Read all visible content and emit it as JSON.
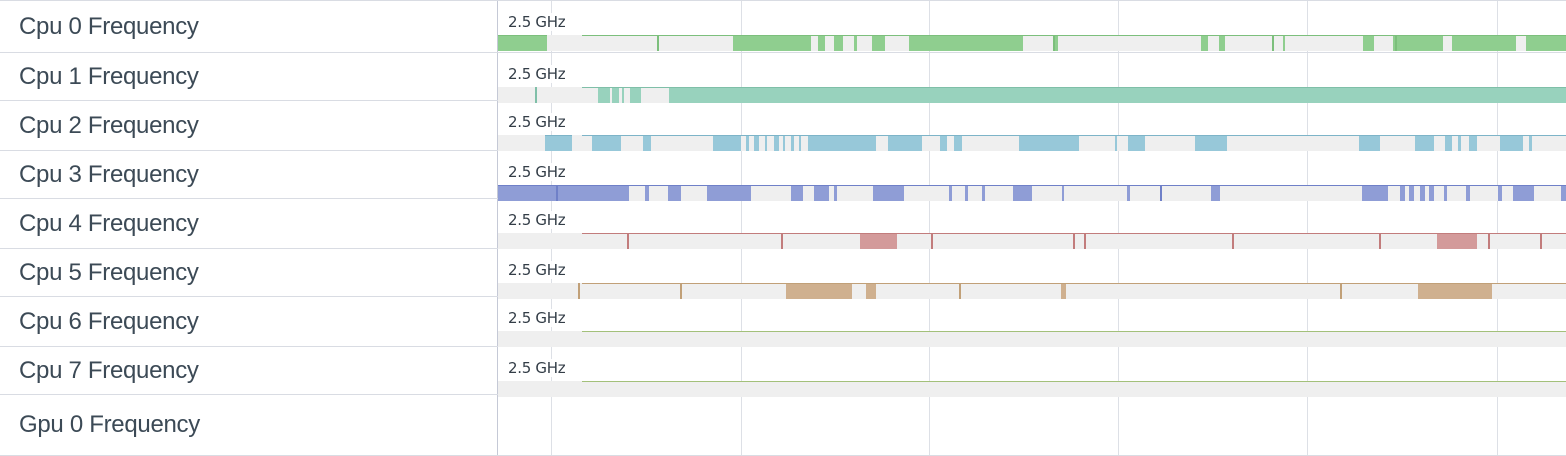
{
  "scale_label": "2.5 GHz",
  "tracks": [
    {
      "label": "Cpu 0 Frequency",
      "color": "#8fce8f",
      "line_color": "#7cbf7c",
      "segments": [
        [
          0.0,
          0.046
        ],
        [
          0.22,
          0.293
        ],
        [
          0.3,
          0.306
        ],
        [
          0.315,
          0.323
        ],
        [
          0.333,
          0.336
        ],
        [
          0.35,
          0.362
        ],
        [
          0.385,
          0.492
        ],
        [
          0.522,
          0.524
        ],
        [
          0.675,
          0.677
        ],
        [
          0.658,
          0.665
        ],
        [
          0.675,
          0.681
        ],
        [
          0.735,
          0.737
        ],
        [
          0.816,
          0.82
        ],
        [
          0.81,
          0.819
        ],
        [
          0.838,
          0.885
        ],
        [
          0.893,
          0.953
        ],
        [
          0.963,
          1.0
        ]
      ],
      "ticks": [
        0.149,
        0.52,
        0.725,
        0.84
      ]
    },
    {
      "label": "Cpu 1 Frequency",
      "color": "#98d2bd",
      "line_color": "#7fbfa8",
      "segments": [
        [
          0.094,
          0.105
        ],
        [
          0.107,
          0.113
        ],
        [
          0.116,
          0.118
        ],
        [
          0.124,
          0.134
        ],
        [
          0.16,
          1.0
        ]
      ],
      "ticks": [
        0.035
      ]
    },
    {
      "label": "Cpu 2 Frequency",
      "color": "#97c8d9",
      "line_color": "#7db4c8",
      "segments": [
        [
          0.044,
          0.069
        ],
        [
          0.088,
          0.115
        ],
        [
          0.136,
          0.143
        ],
        [
          0.201,
          0.228
        ],
        [
          0.232,
          0.235
        ],
        [
          0.24,
          0.244
        ],
        [
          0.25,
          0.252
        ],
        [
          0.258,
          0.263
        ],
        [
          0.267,
          0.269
        ],
        [
          0.274,
          0.277
        ],
        [
          0.282,
          0.284
        ],
        [
          0.29,
          0.354
        ],
        [
          0.365,
          0.397
        ],
        [
          0.414,
          0.42
        ],
        [
          0.427,
          0.434
        ],
        [
          0.488,
          0.544
        ],
        [
          0.578,
          0.58
        ],
        [
          0.59,
          0.606
        ],
        [
          0.653,
          0.68
        ],
        [
          0.68,
          0.683
        ],
        [
          0.806,
          0.826
        ],
        [
          0.859,
          0.876
        ],
        [
          0.887,
          0.893
        ],
        [
          0.899,
          0.902
        ],
        [
          0.909,
          0.917
        ],
        [
          0.938,
          0.96
        ],
        [
          0.965,
          0.968
        ]
      ],
      "ticks": []
    },
    {
      "label": "Cpu 3 Frequency",
      "color": "#8f9dd6",
      "line_color": "#6f80c8",
      "segments": [
        [
          0.0,
          0.123
        ],
        [
          0.138,
          0.141
        ],
        [
          0.159,
          0.171
        ],
        [
          0.196,
          0.237
        ],
        [
          0.274,
          0.286
        ],
        [
          0.296,
          0.31
        ],
        [
          0.315,
          0.317
        ],
        [
          0.351,
          0.38
        ],
        [
          0.422,
          0.425
        ],
        [
          0.437,
          0.44
        ],
        [
          0.453,
          0.456
        ],
        [
          0.482,
          0.5
        ],
        [
          0.528,
          0.53
        ],
        [
          0.589,
          0.592
        ],
        [
          0.668,
          0.676
        ],
        [
          0.809,
          0.833
        ],
        [
          0.845,
          0.849
        ],
        [
          0.853,
          0.858
        ],
        [
          0.863,
          0.868
        ],
        [
          0.872,
          0.876
        ],
        [
          0.886,
          0.889
        ],
        [
          0.906,
          0.91
        ],
        [
          0.936,
          0.94
        ],
        [
          0.95,
          0.97
        ],
        [
          0.995,
          1.0
        ]
      ],
      "ticks": [
        0.054,
        0.62
      ]
    },
    {
      "label": "Cpu 4 Frequency",
      "color": "#d39a9a",
      "line_color": "#c27c7c",
      "segments": [
        [
          0.339,
          0.374
        ],
        [
          0.879,
          0.917
        ]
      ],
      "ticks": [
        0.121,
        0.265,
        0.405,
        0.538,
        0.549,
        0.687,
        0.825,
        0.927,
        0.976
      ]
    },
    {
      "label": "Cpu 5 Frequency",
      "color": "#cfb08f",
      "line_color": "#c1a078",
      "segments": [
        [
          0.27,
          0.331
        ],
        [
          0.345,
          0.354
        ],
        [
          0.527,
          0.532
        ],
        [
          0.861,
          0.931
        ]
      ],
      "ticks": [
        0.075,
        0.17,
        0.432,
        0.788
      ]
    },
    {
      "label": "Cpu 6 Frequency",
      "color": "#b9cf96",
      "line_color": "#a3c07a",
      "segments": [],
      "ticks": []
    },
    {
      "label": "Cpu 7 Frequency",
      "color": "#b9cf96",
      "line_color": "#a3c07a",
      "segments": [],
      "ticks": []
    },
    {
      "label": "Gpu 0 Frequency",
      "color": "",
      "line_color": "",
      "segments": [],
      "ticks": []
    }
  ]
}
